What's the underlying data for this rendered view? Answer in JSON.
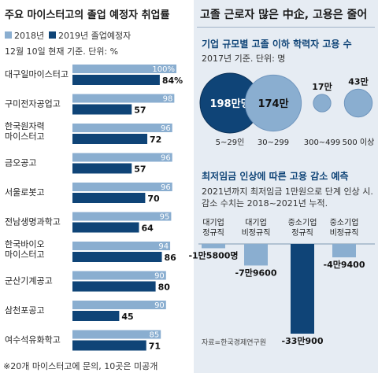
{
  "left": {
    "title": "주요 마이스터고의 졸업 예정자 취업률",
    "legend": [
      "2018년",
      "2019년 졸업예정자"
    ],
    "note": "12월 10일 현재 기준. 단위: %",
    "footnote": "※20개 마이스터고에 문의, 10곳은 미공개"
  },
  "right": {
    "title": "고졸 근로자 많은 中企, 고용은 줄어",
    "sec1_title": "기업 규모별 고졸 이하 학력자 고용 수",
    "sec1_note": "2017년 기준. 단위: 명",
    "sec2_title": "최저임금 인상에 따른 고용 감소 예측",
    "sec2_note1": "2021년까지 최저임금 1만원으로 단계 인상 시.",
    "sec2_note2": "감소 수치는 2018~2021년 누적.",
    "source": "자료=한국경제연구원"
  },
  "colors": {
    "light": "#8aaed0",
    "dark": "#0f4477",
    "panel": "#e6ecf3"
  },
  "chart_data": [
    {
      "type": "bar",
      "orientation": "horizontal",
      "categories": [
        "대구일마이스터고",
        "구미전자공업고",
        "한국원자력 마이스터고",
        "금오공고",
        "서울로봇고",
        "전남생명과학고",
        "한국바이오 마이스터고",
        "군산기계공고",
        "삼천포공고",
        "여수석유화학고"
      ],
      "series": [
        {
          "name": "2018년",
          "values": [
            100,
            98,
            96,
            96,
            96,
            95,
            94,
            90,
            90,
            85
          ],
          "labels": [
            "100%",
            "98",
            "96",
            "96",
            "96",
            "95",
            "94",
            "90",
            "90",
            "85"
          ]
        },
        {
          "name": "2019년 졸업예정자",
          "values": [
            84,
            57,
            72,
            57,
            70,
            64,
            86,
            80,
            45,
            71
          ],
          "labels": [
            "84%",
            "57",
            "72",
            "57",
            "70",
            "64",
            "86",
            "80",
            "45",
            "71"
          ]
        }
      ],
      "xlim": [
        0,
        100
      ]
    },
    {
      "type": "bubble",
      "categories": [
        "5~29인",
        "30~299",
        "300~499",
        "500 이상"
      ],
      "values": [
        1980000,
        1740000,
        170000,
        430000
      ],
      "labels": [
        "198만명",
        "174만",
        "17만",
        "43만"
      ]
    },
    {
      "type": "bar",
      "orientation": "vertical",
      "categories": [
        "대기업 정규직",
        "대기업 비정규직",
        "중소기업 정규직",
        "중소기업 비정규직"
      ],
      "values": [
        -15800,
        -79600,
        -330900,
        -49400
      ],
      "labels": [
        "-1만5800명",
        "-7만9600",
        "-33만900",
        "-4만9400"
      ]
    }
  ]
}
